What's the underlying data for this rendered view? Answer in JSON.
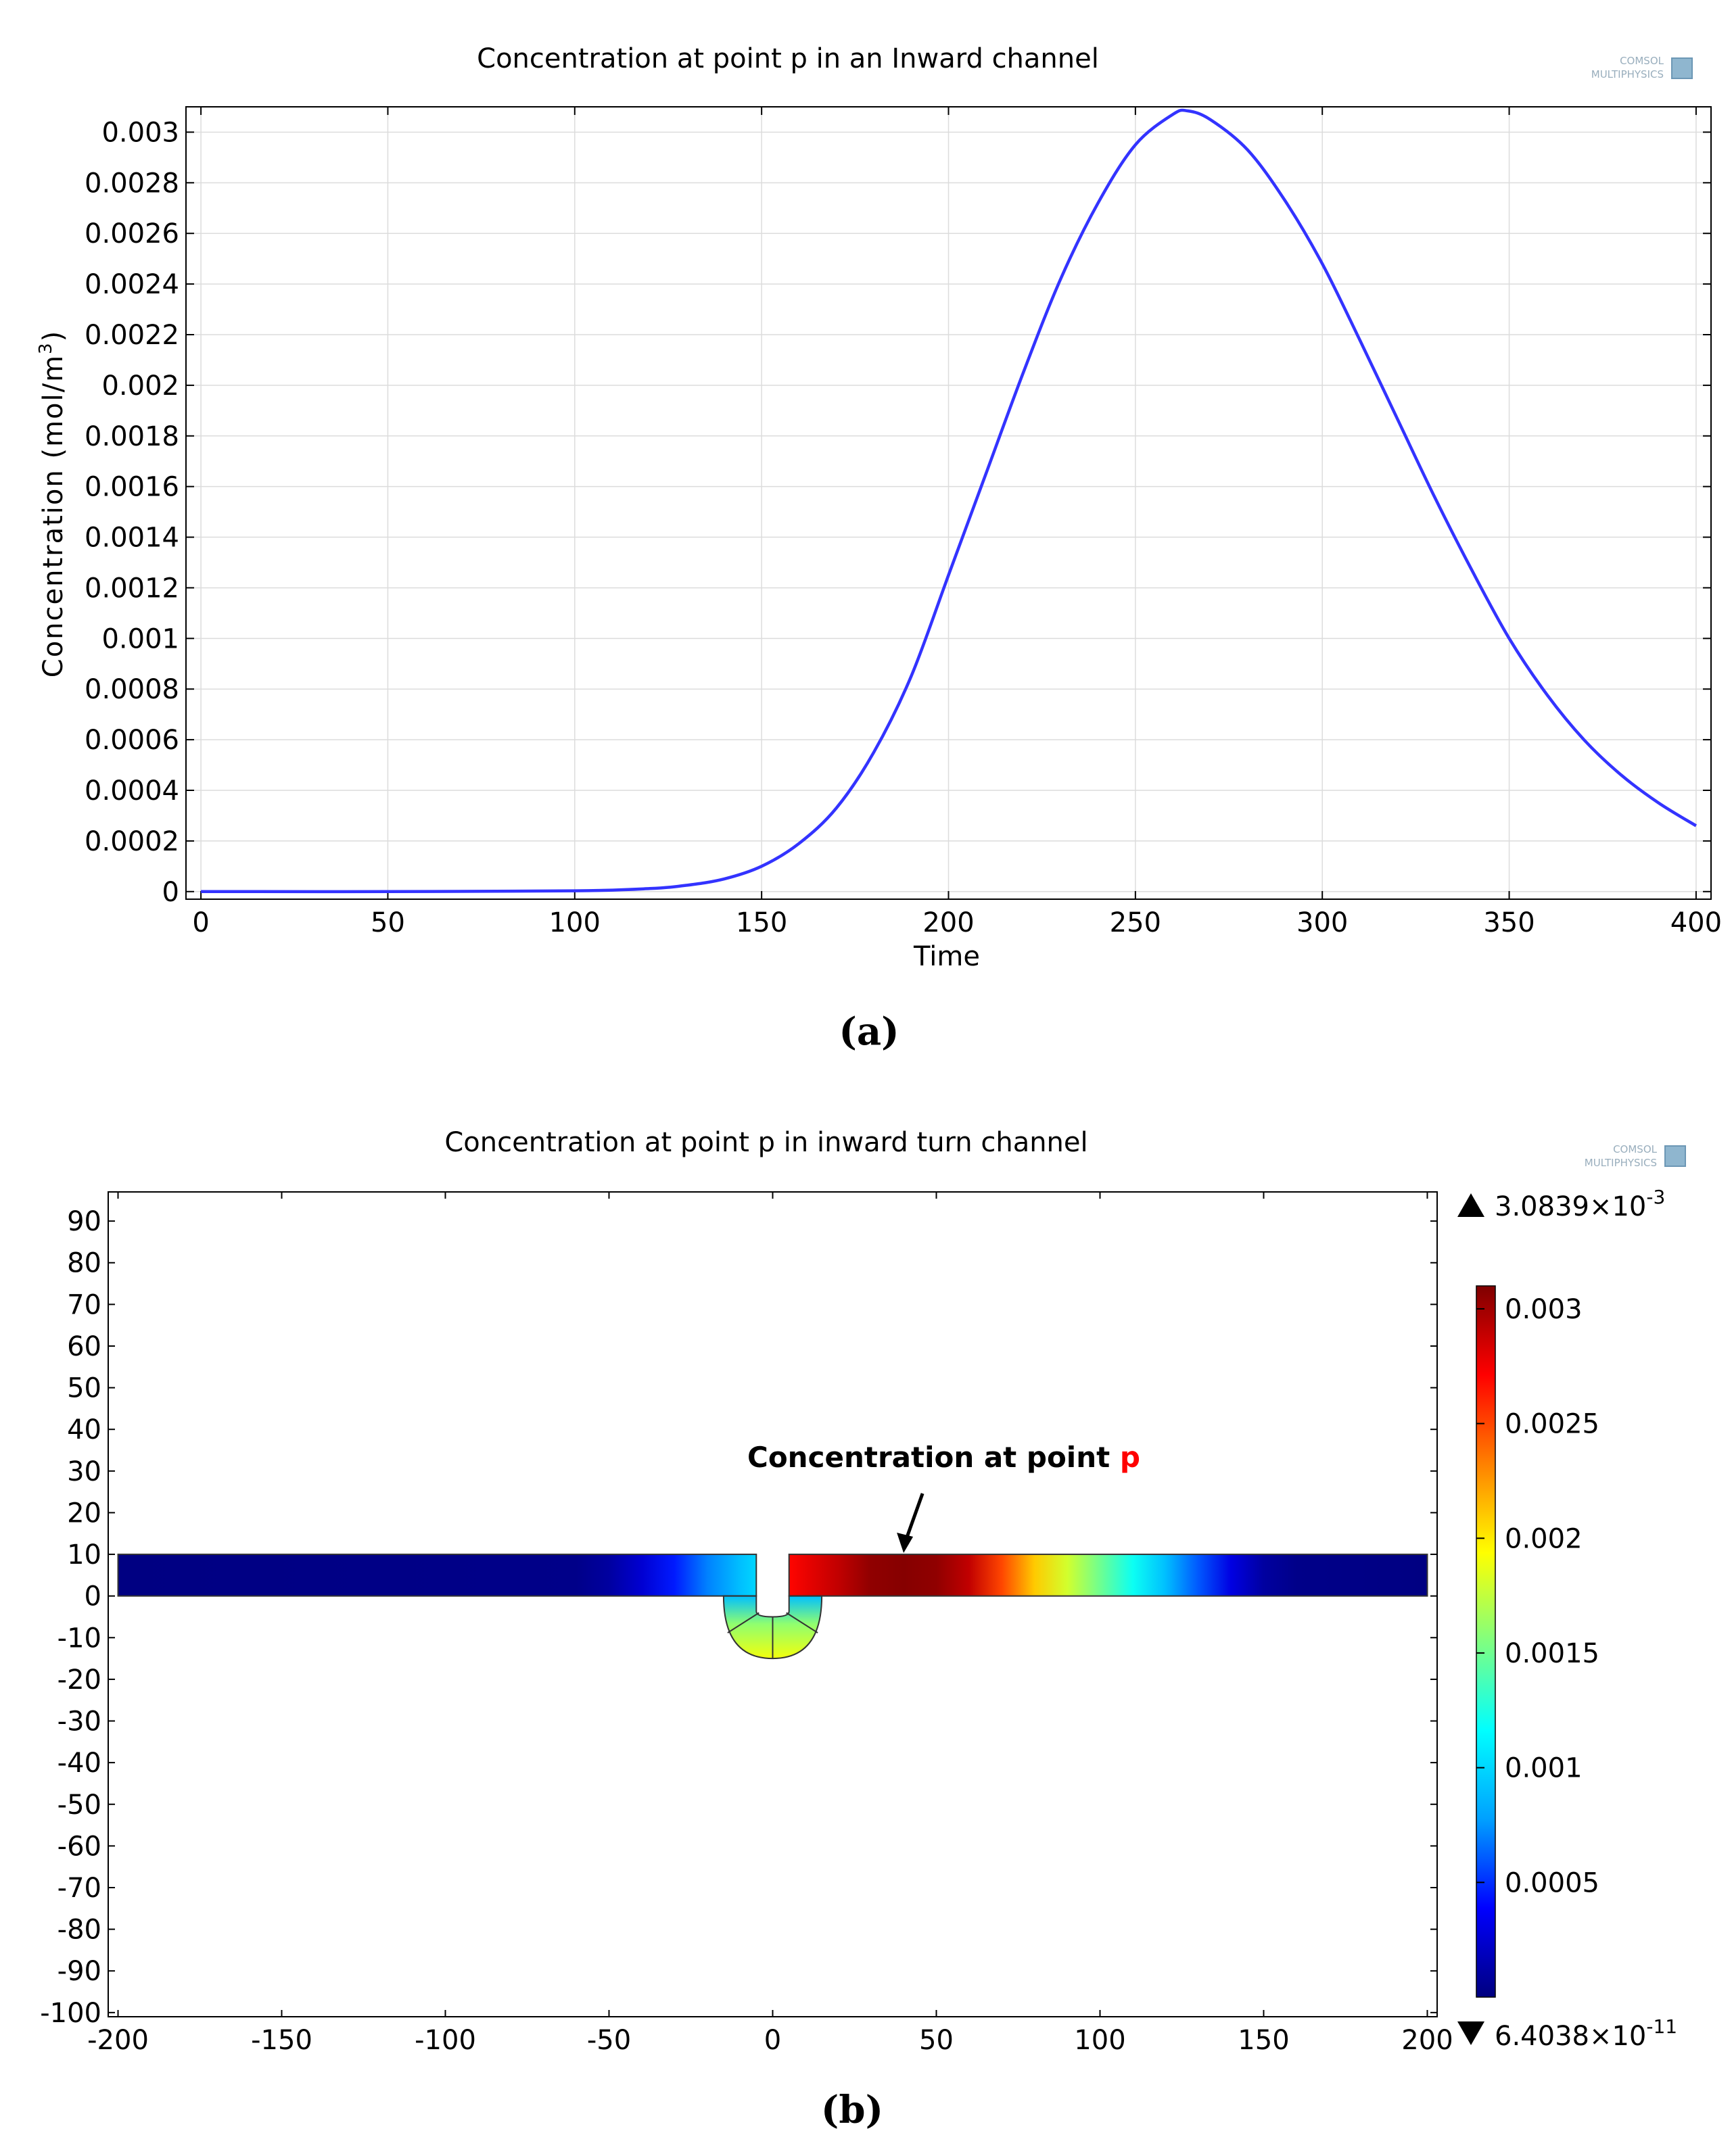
{
  "panel_a": {
    "caption": "(a)",
    "logo": {
      "line1": "COMSOL",
      "line2": "MULTIPHYSICS"
    }
  },
  "panel_b": {
    "caption": "(b)",
    "logo": {
      "line1": "COMSOL",
      "line2": "MULTIPHYSICS"
    },
    "annotation": {
      "text": "Concentration at point ",
      "point": "p"
    },
    "colorbar": {
      "max_mantissa": "3.0839×10",
      "max_exp": "-3",
      "min_mantissa": "6.4038×10",
      "min_exp": "-11",
      "ticks": [
        "0.003",
        "0.0025",
        "0.002",
        "0.0015",
        "0.001",
        "0.0005"
      ],
      "tick_values": [
        0.003,
        0.0025,
        0.002,
        0.0015,
        0.001,
        0.0005
      ],
      "range": [
        0,
        0.0031
      ],
      "colormap": [
        "#00007f",
        "#0000ff",
        "#00a0ff",
        "#00ffff",
        "#80ff80",
        "#ffff00",
        "#ff8000",
        "#ff0000",
        "#7f0000"
      ]
    },
    "annotation_color": "#ff0000"
  },
  "chart_data": [
    {
      "type": "line",
      "title": "Concentration at point p in an Inward channel",
      "xlabel": "Time",
      "ylabel": "Concentration (mol/m",
      "ylabel_sup": "3",
      "ylabel_close": ")",
      "xlim": [
        -4,
        404
      ],
      "ylim": [
        -3e-05,
        0.0031
      ],
      "xticks": [
        0,
        50,
        100,
        150,
        200,
        250,
        300,
        350,
        400
      ],
      "xtick_labels": [
        "0",
        "50",
        "100",
        "150",
        "200",
        "250",
        "300",
        "350",
        "400"
      ],
      "yticks": [
        0,
        0.0002,
        0.0004,
        0.0006,
        0.0008,
        0.001,
        0.0012,
        0.0014,
        0.0016,
        0.0018,
        0.002,
        0.0022,
        0.0024,
        0.0026,
        0.0028,
        0.003
      ],
      "ytick_labels": [
        "0",
        "0.0002",
        "0.0004",
        "0.0006",
        "0.0008",
        "0.001",
        "0.0012",
        "0.0014",
        "0.0016",
        "0.0018",
        "0.002",
        "0.0022",
        "0.0024",
        "0.0026",
        "0.0028",
        "0.003"
      ],
      "grid": true,
      "series": [
        {
          "name": "Concentration at point p",
          "color": "#3333ff",
          "x": [
            0,
            50,
            100,
            120,
            130,
            140,
            150,
            160,
            170,
            180,
            190,
            200,
            210,
            220,
            230,
            240,
            250,
            260,
            264,
            270,
            280,
            290,
            300,
            310,
            320,
            330,
            340,
            350,
            360,
            370,
            380,
            390,
            400
          ],
          "y": [
            0,
            0,
            3e-06,
            1.2e-05,
            2.5e-05,
            5e-05,
            0.0001,
            0.00019,
            0.00033,
            0.00055,
            0.00085,
            0.00125,
            0.00165,
            0.00205,
            0.00242,
            0.00272,
            0.00295,
            0.00307,
            0.003084,
            0.00305,
            0.00293,
            0.00273,
            0.00248,
            0.00218,
            0.00187,
            0.00156,
            0.00127,
            0.001,
            0.00078,
            0.0006,
            0.00046,
            0.00035,
            0.00026
          ]
        }
      ]
    },
    {
      "type": "heatmap",
      "title": "Concentration at point p in inward turn channel",
      "xlim": [
        -203,
        203
      ],
      "ylim": [
        -101,
        97
      ],
      "xticks": [
        -200,
        -150,
        -100,
        -50,
        0,
        50,
        100,
        150,
        200
      ],
      "xtick_labels": [
        "-200",
        "-150",
        "-100",
        "-50",
        "0",
        "50",
        "100",
        "150",
        "200"
      ],
      "yticks": [
        90,
        80,
        70,
        60,
        50,
        40,
        30,
        20,
        10,
        0,
        -10,
        -20,
        -30,
        -40,
        -50,
        -60,
        -70,
        -80,
        -90,
        -100
      ],
      "ytick_labels": [
        "90",
        "80",
        "70",
        "60",
        "50",
        "40",
        "30",
        "20",
        "10",
        "0",
        "-10",
        "-20",
        "-30",
        "-40",
        "-50",
        "-60",
        "-70",
        "-80",
        "-90",
        "-100"
      ],
      "channel": {
        "y_range": [
          0,
          10
        ],
        "left_x": [
          -200,
          -5
        ],
        "right_x": [
          5,
          200
        ],
        "turn_center_x": 0,
        "turn_bottom_y": -15
      },
      "left_profile": {
        "x": [
          -200,
          -60,
          -50,
          -40,
          -30,
          -20,
          -10,
          -5
        ],
        "c": [
          1e-05,
          3e-05,
          0.0001,
          0.00025,
          0.00045,
          0.0007,
          0.0009,
          0.001
        ]
      },
      "right_profile": {
        "x": [
          5,
          20,
          30,
          40,
          50,
          60,
          70,
          80,
          90,
          100,
          110,
          120,
          130,
          140,
          150,
          160,
          200
        ],
        "c": [
          0.0027,
          0.0029,
          0.00305,
          0.00308,
          0.00305,
          0.0029,
          0.0025,
          0.0021,
          0.0018,
          0.0015,
          0.0012,
          0.0009,
          0.0006,
          0.0003,
          0.0001,
          3e-05,
          1e-05
        ]
      },
      "point_p": {
        "x": 40,
        "y": 10
      }
    }
  ]
}
